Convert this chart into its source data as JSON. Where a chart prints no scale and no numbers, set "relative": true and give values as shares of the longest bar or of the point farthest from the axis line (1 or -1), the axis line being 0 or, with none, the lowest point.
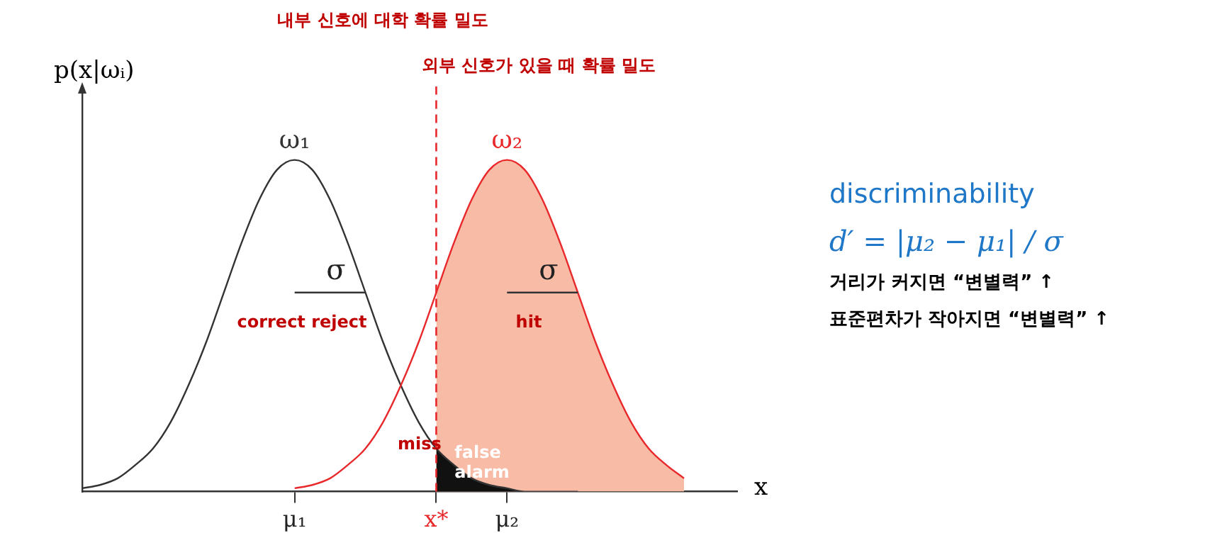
{
  "chart_data": {
    "type": "line",
    "relative": true,
    "title": "내부 신호에 대학 확률 밀도",
    "subtitle": "외부 신호가 있을 때 확률 밀도",
    "xlabel": "x",
    "ylabel": "p(x|ωᵢ)",
    "legend": false,
    "grid": false,
    "categories": [
      null,
      null,
      null,
      null,
      null,
      null,
      null,
      null,
      null,
      null,
      null,
      null,
      "μ₁",
      null,
      null,
      null,
      null,
      null,
      null,
      null,
      "x*",
      null,
      null,
      null,
      "μ₂",
      null,
      null,
      null,
      null,
      null,
      null,
      null,
      null,
      null,
      null,
      null,
      null,
      null
    ],
    "series": [
      {
        "type": "area",
        "color": "#f7bba6",
        "values": [
          null,
          null,
          null,
          null,
          null,
          null,
          null,
          null,
          null,
          null,
          null,
          null,
          null,
          null,
          null,
          null,
          null,
          null,
          null,
          null,
          0.6,
          0.75,
          0.88,
          0.97,
          1,
          0.97,
          0.88,
          0.75,
          0.6,
          0.45,
          0.32,
          0.21,
          0.13,
          0.08,
          0.04,
          null,
          null,
          null
        ]
      },
      {
        "type": "area",
        "color": "#111111",
        "values": [
          null,
          null,
          null,
          null,
          null,
          null,
          null,
          null,
          null,
          null,
          null,
          null,
          null,
          null,
          null,
          null,
          null,
          null,
          null,
          null,
          0.13,
          0.08,
          0.04,
          0.02,
          0.01,
          0,
          0,
          0,
          0,
          null,
          null,
          null,
          null,
          null,
          null,
          null,
          null,
          null
        ]
      },
      {
        "name": "ω₁",
        "color": "#333333",
        "values": [
          0.01,
          0.02,
          0.04,
          0.08,
          0.13,
          0.21,
          0.32,
          0.45,
          0.6,
          0.75,
          0.88,
          0.97,
          1,
          0.97,
          0.88,
          0.75,
          0.6,
          0.45,
          0.32,
          0.21,
          0.13,
          0.08,
          0.04,
          0.02,
          0.01,
          0,
          0,
          0,
          0,
          null,
          null,
          null,
          null,
          null,
          null,
          null,
          null,
          null
        ]
      },
      {
        "name": "ω₂",
        "color": "#e8282a",
        "values": [
          null,
          null,
          null,
          null,
          null,
          null,
          null,
          null,
          null,
          null,
          null,
          null,
          0.01,
          0.02,
          0.04,
          0.08,
          0.13,
          0.21,
          0.32,
          0.45,
          0.6,
          0.75,
          0.88,
          0.97,
          1,
          0.97,
          0.88,
          0.75,
          0.6,
          0.45,
          0.32,
          0.21,
          0.13,
          0.08,
          0.04,
          null,
          null,
          null
        ]
      },
      {
        "color": "#333333",
        "values": [
          null,
          null,
          null,
          null,
          null,
          null,
          null,
          null,
          null,
          null,
          null,
          null,
          0.6,
          0.6,
          0.6,
          0.6,
          0.6,
          null,
          null,
          null,
          null,
          null,
          null,
          null,
          null,
          null,
          null,
          null,
          null,
          null,
          null,
          null,
          null,
          null,
          null,
          null,
          null,
          null
        ]
      },
      {
        "color": "#333333",
        "values": [
          null,
          null,
          null,
          null,
          null,
          null,
          null,
          null,
          null,
          null,
          null,
          null,
          null,
          null,
          null,
          null,
          null,
          null,
          null,
          null,
          null,
          null,
          null,
          null,
          0.6,
          0.6,
          0.6,
          0.6,
          0.6,
          null,
          null,
          null,
          null,
          null,
          null,
          null,
          null,
          null
        ]
      }
    ],
    "ref_lines": [
      {
        "axis": "x",
        "value": "x*",
        "color": "#e8282a",
        "line_style": "dashed"
      }
    ],
    "annotations": [
      "σ",
      "σ",
      "correct reject",
      "hit",
      "miss",
      "false\nalarm",
      "discriminability",
      "d′ = |μ₂ − μ₁| / σ",
      "거리가 커지면 “변별력” ↑",
      "표준편차가 작아지면 “변별력” ↑"
    ]
  }
}
